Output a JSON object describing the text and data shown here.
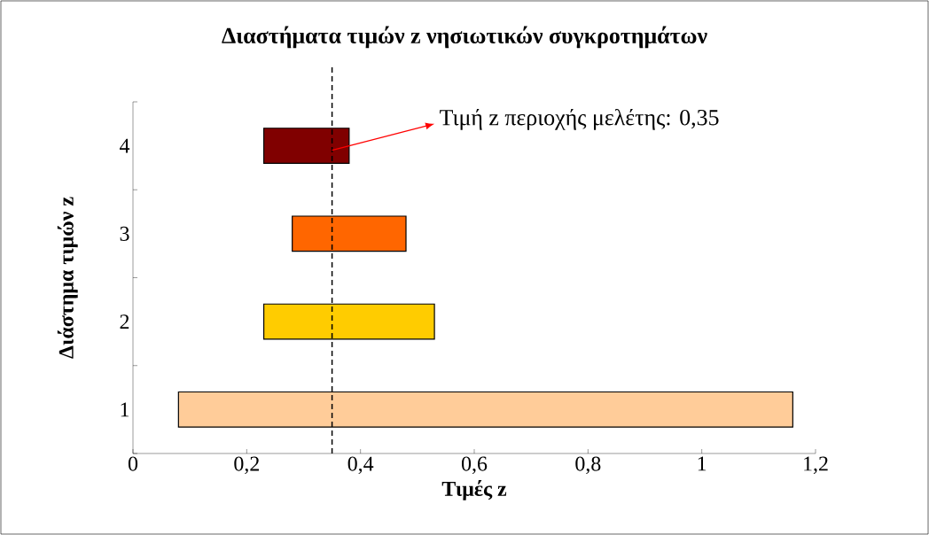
{
  "chart_data": {
    "type": "bar",
    "orientation": "horizontal",
    "title": "Διαστήματα τιμών z νησιωτικών συγκροτημάτων",
    "xlabel": "Τιμές z",
    "ylabel": "Διάστημα τιμών z",
    "categories": [
      "4",
      "3",
      "2",
      "1"
    ],
    "base": [
      0.23,
      0.28,
      0.23,
      0.08
    ],
    "values": [
      0.15,
      0.2,
      0.3,
      1.08
    ],
    "colors": [
      "#800000",
      "#ff6600",
      "#ffcc00",
      "#ffcc99"
    ],
    "xlim": [
      0,
      1.2
    ],
    "xticks": [
      0,
      {
        "value": 0.2,
        "label": "0,2"
      },
      {
        "value": 0.4,
        "label": "0,4"
      },
      {
        "value": 0.6,
        "label": "0,6"
      },
      {
        "value": 0.8,
        "label": "0,8"
      },
      1,
      {
        "value": 1.2,
        "label": "1,2"
      }
    ],
    "ref_lines": [
      {
        "axis": "x",
        "value": 0.35,
        "label": "Τιμή z περιοχής μελέτης: 0,35",
        "color": "#000000",
        "line_style": "dashed"
      }
    ],
    "grid": false
  }
}
